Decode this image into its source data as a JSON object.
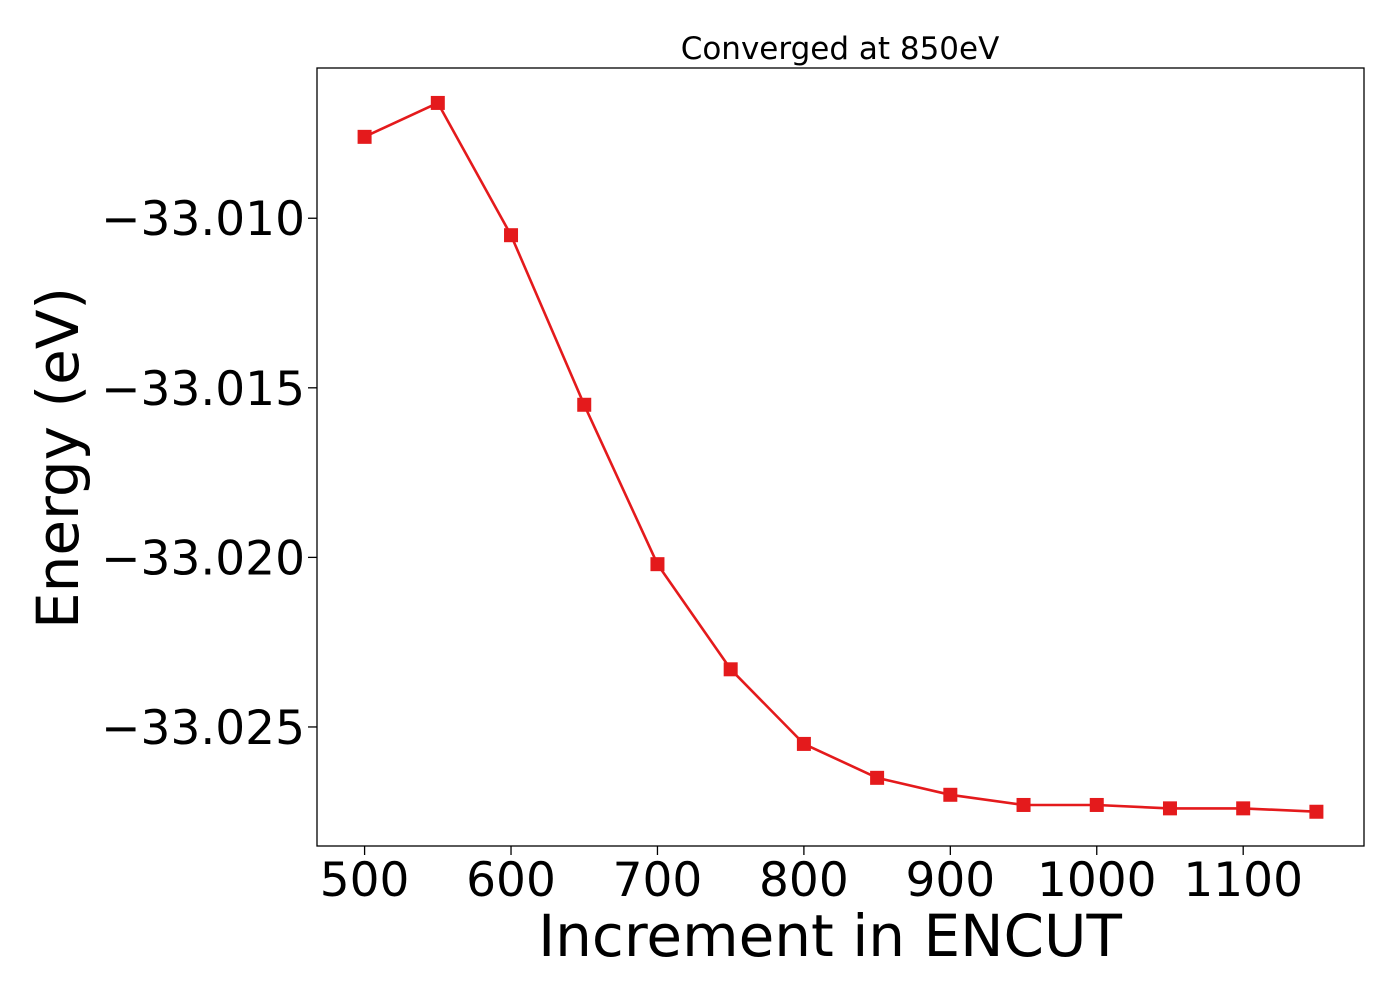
{
  "chart_data": {
    "type": "line",
    "title": "Converged at 850eV",
    "xlabel": "Increment in ENCUT",
    "ylabel": "Energy (eV)",
    "x": [
      500,
      550,
      600,
      650,
      700,
      750,
      800,
      850,
      900,
      950,
      1000,
      1050,
      1100,
      1150
    ],
    "series": [
      {
        "values": [
          -33.0076,
          -33.0066,
          -33.0105,
          -33.0155,
          -33.0202,
          -33.0233,
          -33.0255,
          -33.0265,
          -33.027,
          -33.0273,
          -33.0273,
          -33.0274,
          -33.0274,
          -33.0275
        ],
        "color": "#e41a1c",
        "marker": "square"
      }
    ],
    "xlim": [
      467.5,
      1182.5
    ],
    "ylim": [
      -33.02851,
      -33.00557
    ],
    "xticks": [
      500,
      600,
      700,
      800,
      900,
      1000,
      1100
    ],
    "xtick_labels": [
      "500",
      "600",
      "700",
      "800",
      "900",
      "1000",
      "1100"
    ],
    "yticks": [
      -33.01,
      -33.015,
      -33.02,
      -33.025
    ],
    "ytick_labels": [
      "−33.010",
      "−33.015",
      "−33.020",
      "−33.025"
    ],
    "grid": false,
    "legend": false
  }
}
